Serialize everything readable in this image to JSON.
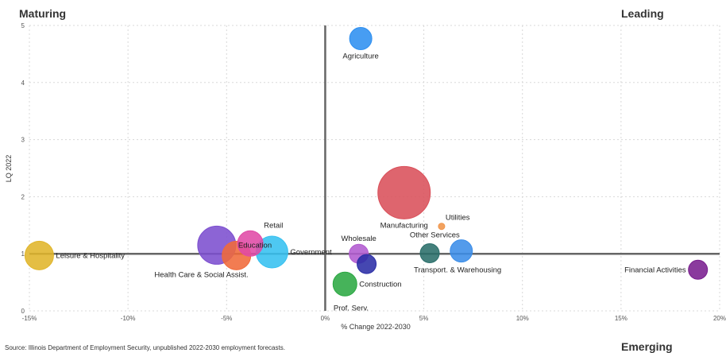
{
  "chart_data": {
    "type": "scatter",
    "xlabel": "% Change 2022-2030",
    "ylabel": "LQ 2022",
    "xlim": [
      -15,
      20
    ],
    "ylim": [
      0,
      5
    ],
    "x_ticks": [
      {
        "v": -15,
        "label": "-15%"
      },
      {
        "v": -10,
        "label": "-10%"
      },
      {
        "v": -5,
        "label": "-5%"
      },
      {
        "v": 0,
        "label": "0%"
      },
      {
        "v": 5,
        "label": "5%"
      },
      {
        "v": 10,
        "label": "10%"
      },
      {
        "v": 15,
        "label": "15%"
      },
      {
        "v": 20,
        "label": "20%"
      }
    ],
    "y_ticks": [
      {
        "v": 0,
        "label": "0"
      },
      {
        "v": 1,
        "label": "1"
      },
      {
        "v": 2,
        "label": "2"
      },
      {
        "v": 3,
        "label": "3"
      },
      {
        "v": 4,
        "label": "4"
      },
      {
        "v": 5,
        "label": "5"
      }
    ],
    "grid": true,
    "reference_lines": {
      "x": 0,
      "y": 1
    },
    "quadrant_labels": {
      "top_left": "Maturing",
      "top_right": "Leading",
      "bottom_right": "Emerging"
    },
    "points": [
      {
        "label": "Agriculture",
        "x": 1.8,
        "y": 4.77,
        "size": 14,
        "color": "#2e8ff0",
        "label_pos": "below"
      },
      {
        "label": "Manufacturing",
        "x": 4.0,
        "y": 2.07,
        "size": 33,
        "color": "#d9505a",
        "label_pos": "below"
      },
      {
        "label": "Utilities",
        "x": 5.9,
        "y": 1.48,
        "size": 4,
        "color": "#f0954a",
        "label_pos": "above-right"
      },
      {
        "label": "Other Services",
        "x": 6.9,
        "y": 1.05,
        "size": 14,
        "color": "#3b8de8",
        "label_pos": "above-left"
      },
      {
        "label": "Transport. & Warehousing",
        "x": 5.3,
        "y": 1.01,
        "size": 12,
        "color": "#2a6e6a",
        "label_pos": "below-right"
      },
      {
        "label": "Wholesale",
        "x": 1.7,
        "y": 1.0,
        "size": 12,
        "color": "#b25bd0",
        "label_pos": "above"
      },
      {
        "label": "",
        "x": 2.1,
        "y": 0.82,
        "size": 12,
        "color": "#2b2ea6",
        "label_pos": "none"
      },
      {
        "label": "Construction",
        "x": 1.0,
        "y": 0.47,
        "size": 15,
        "color": "#2ca843",
        "label_pos": "right"
      },
      {
        "label": "Prof. Serv.",
        "x": 0.3,
        "y": 0.05,
        "size": 0,
        "color": "#2ca843",
        "label_pos": "right"
      },
      {
        "label": "Leisure & Hospitality",
        "x": -14.5,
        "y": 0.97,
        "size": 18,
        "color": "#e0b52a",
        "label_pos": "right"
      },
      {
        "label": "Education",
        "x": -5.5,
        "y": 1.15,
        "size": 24,
        "color": "#7c4fcf",
        "label_pos": "right"
      },
      {
        "label": "Retail",
        "x": -3.8,
        "y": 1.18,
        "size": 16,
        "color": "#e04aa6",
        "label_pos": "above-right"
      },
      {
        "label": "Health Care & Social Assist.",
        "x": -4.5,
        "y": 0.97,
        "size": 18,
        "color": "#f06a3a",
        "label_pos": "below-left"
      },
      {
        "label": "Government",
        "x": -2.7,
        "y": 1.03,
        "size": 20,
        "color": "#35c0f0",
        "label_pos": "right"
      },
      {
        "label": "Financial Activities",
        "x": 18.9,
        "y": 0.72,
        "size": 12,
        "color": "#7a1f8f",
        "label_pos": "left"
      }
    ]
  },
  "source_text": "Source: Illinois Department of Employment Security, unpublished 2022-2030 employment forecasts."
}
